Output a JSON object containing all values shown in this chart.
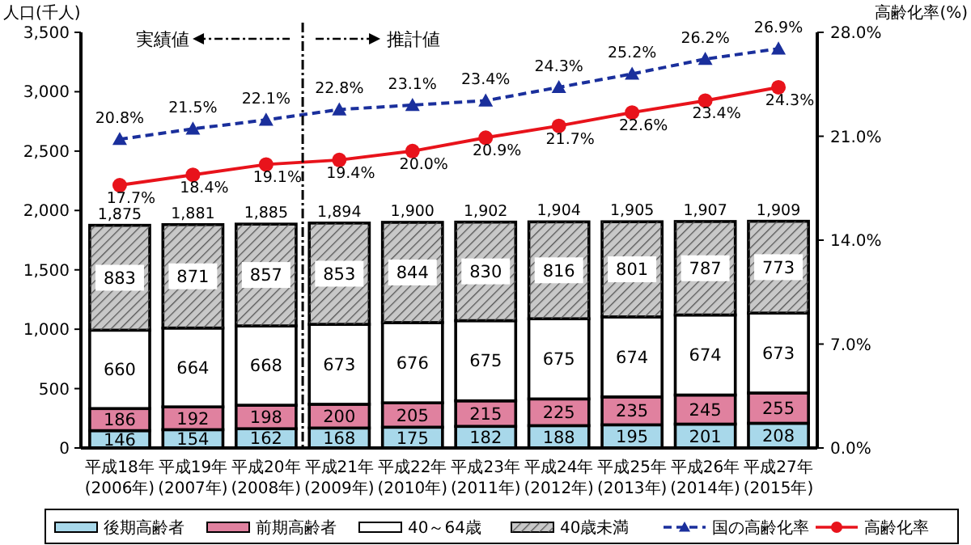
{
  "chart_data": {
    "type": "bar",
    "stacked": true,
    "ylabel": "人口(千人)",
    "y2label": "高齢化率(%)",
    "categories": [
      "平成18年\n(2006年)",
      "平成19年\n(2007年)",
      "平成20年\n(2008年)",
      "平成21年\n(2009年)",
      "平成22年\n(2010年)",
      "平成23年\n(2011年)",
      "平成24年\n(2012年)",
      "平成25年\n(2013年)",
      "平成26年\n(2014年)",
      "平成27年\n(2015年)"
    ],
    "series": [
      {
        "name": "後期高齢者",
        "color": "#a8d8ea",
        "values": [
          146,
          154,
          162,
          168,
          175,
          182,
          188,
          195,
          201,
          208
        ]
      },
      {
        "name": "前期高齢者",
        "color": "#e0819f",
        "values": [
          186,
          192,
          198,
          200,
          205,
          215,
          225,
          235,
          245,
          255
        ]
      },
      {
        "name": "40～64歳",
        "color": "#ffffff",
        "values": [
          660,
          664,
          668,
          673,
          676,
          675,
          675,
          674,
          674,
          673
        ]
      },
      {
        "name": "40歳未満",
        "color": "#c8c8c8",
        "values": [
          883,
          871,
          857,
          853,
          844,
          830,
          816,
          801,
          787,
          773
        ]
      },
      {
        "name": "国の高齢化率",
        "type": "line",
        "axis": "y2",
        "color": "#1a2f9c",
        "marker": "triangle",
        "line_style": "dashed",
        "values": [
          20.8,
          21.5,
          22.1,
          22.8,
          23.1,
          23.4,
          24.3,
          25.2,
          26.2,
          26.9
        ],
        "value_labels": [
          "20.8%",
          "21.5%",
          "22.1%",
          "22.8%",
          "23.1%",
          "23.4%",
          "24.3%",
          "25.2%",
          "26.2%",
          "26.9%"
        ]
      },
      {
        "name": "高齢化率",
        "type": "line",
        "axis": "y2",
        "color": "#e8131b",
        "marker": "circle",
        "line_style": "solid",
        "values": [
          17.7,
          18.4,
          19.1,
          19.4,
          20.0,
          20.9,
          21.7,
          22.6,
          23.4,
          24.3
        ],
        "value_labels": [
          "17.7%",
          "18.4%",
          "19.1%",
          "19.4%",
          "20.0%",
          "20.9%",
          "21.7%",
          "22.6%",
          "23.4%",
          "24.3%"
        ]
      }
    ],
    "data_labels": true,
    "totals": [
      "1,875",
      "1,881",
      "1,885",
      "1,894",
      "1,900",
      "1,902",
      "1,904",
      "1,905",
      "1,907",
      "1,909"
    ],
    "ylim": [
      0,
      3500
    ],
    "yticks": [
      {
        "value": 0,
        "label": "0"
      },
      {
        "value": 500,
        "label": "500"
      },
      {
        "value": 1000,
        "label": "1,000"
      },
      {
        "value": 1500,
        "label": "1,500"
      },
      {
        "value": 2000,
        "label": "2,000"
      },
      {
        "value": 2500,
        "label": "2,500"
      },
      {
        "value": 3000,
        "label": "3,000"
      },
      {
        "value": 3500,
        "label": "3,500"
      }
    ],
    "y2lim": [
      0,
      28
    ],
    "y2ticks": [
      {
        "value": 0,
        "label": "0.0%"
      },
      {
        "value": 7,
        "label": "7.0%"
      },
      {
        "value": 14,
        "label": "14.0%"
      },
      {
        "value": 21,
        "label": "21.0%"
      },
      {
        "value": 28,
        "label": "28.0%"
      }
    ],
    "annotations": [
      "実績値",
      "推計値"
    ],
    "legend": "bottom"
  }
}
